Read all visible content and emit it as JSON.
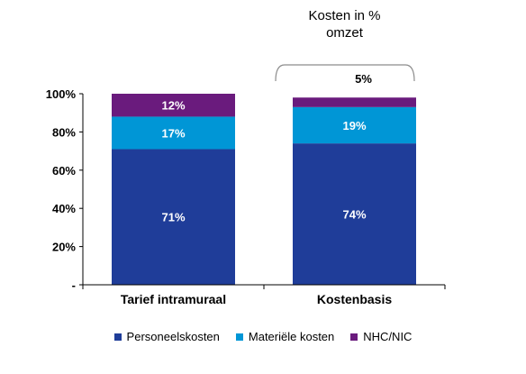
{
  "chart_data": {
    "type": "bar",
    "stacked": true,
    "categories": [
      "Tarief intramuraal",
      "Kostenbasis"
    ],
    "series": [
      {
        "name": "Personeelskosten",
        "values": [
          71,
          74
        ],
        "labels": [
          "71%",
          "74%"
        ],
        "color": "#1f3d99",
        "label_color": "#ffffff"
      },
      {
        "name": "Materiële kosten",
        "values": [
          17,
          19
        ],
        "labels": [
          "17%",
          "19%"
        ],
        "color": "#0096d6",
        "label_color": "#ffffff"
      },
      {
        "name": "NHC/NIC",
        "values": [
          12,
          5
        ],
        "labels": [
          "12%",
          "5%"
        ],
        "color": "#6a1b7d",
        "label_color": "#ffffff"
      }
    ],
    "ylim": [
      0,
      100
    ],
    "yticks": [
      0,
      20,
      40,
      60,
      80,
      100
    ],
    "ytick_labels": [
      "-",
      "20%",
      "40%",
      "60%",
      "80%",
      "100%"
    ],
    "legend_position": "bottom",
    "grid": false,
    "annotation": {
      "text": "Kosten in % omzet",
      "lines": [
        "Kosten in %",
        "omzet"
      ],
      "target_category": "Kostenbasis"
    }
  }
}
